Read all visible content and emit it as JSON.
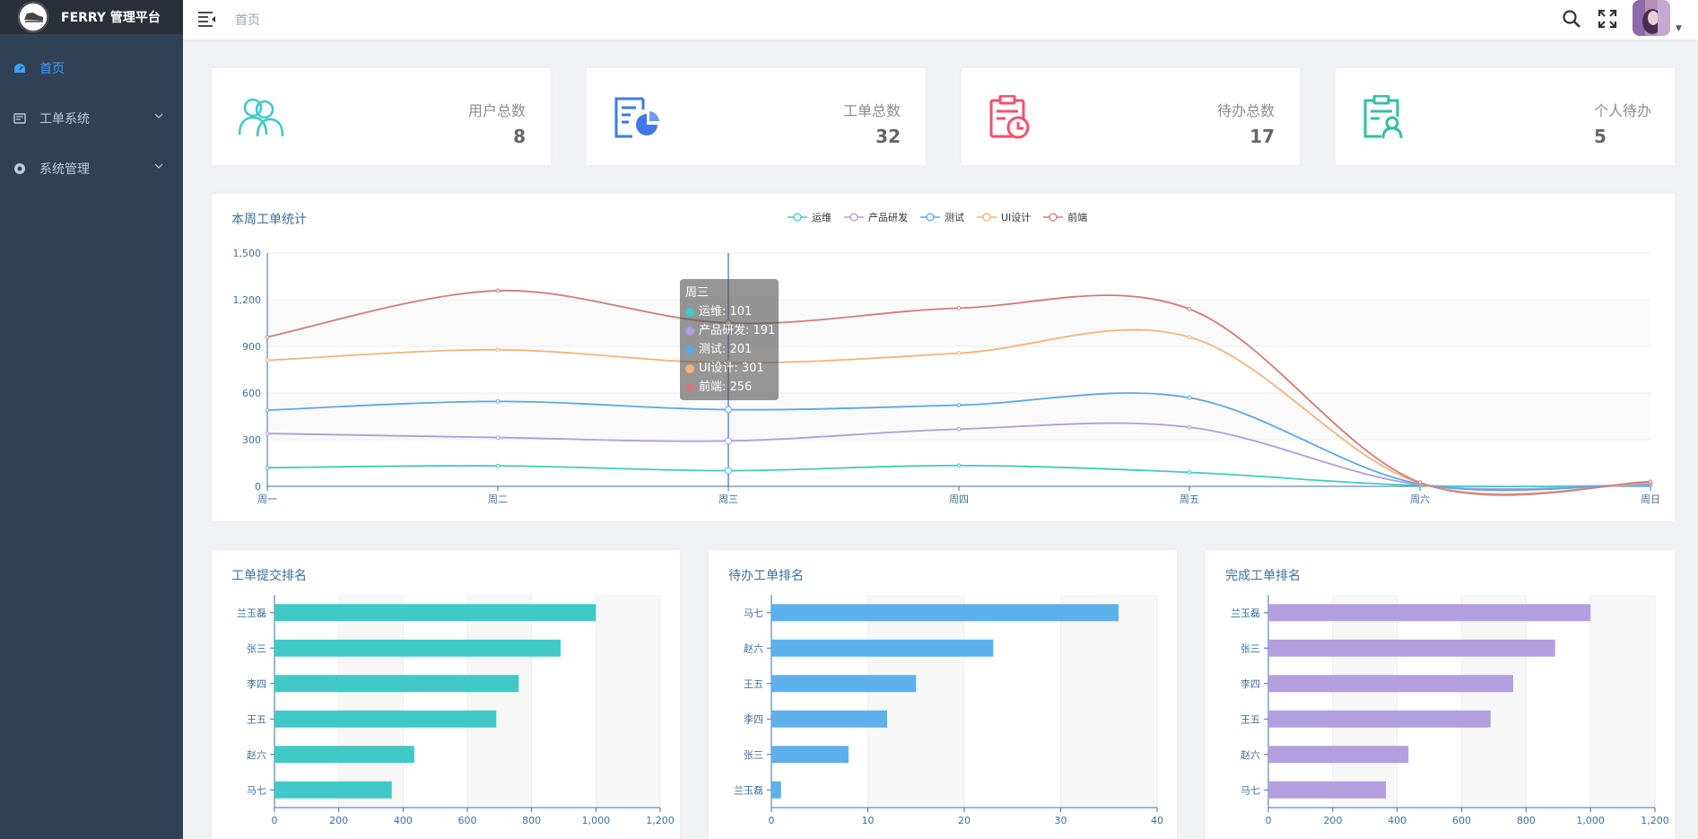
{
  "app": {
    "title": "FERRY 管理平台"
  },
  "sidebar": {
    "items": [
      {
        "label": "首页",
        "icon": "dashboard-icon"
      },
      {
        "label": "工单系统",
        "icon": "ticket-icon"
      },
      {
        "label": "系统管理",
        "icon": "settings-icon"
      }
    ]
  },
  "navbar": {
    "breadcrumb": "首页"
  },
  "stats": [
    {
      "label": "用户总数",
      "value": "8",
      "icon": "users-icon",
      "color": "#40c9c6"
    },
    {
      "label": "工单总数",
      "value": "32",
      "icon": "ticket-chart-icon",
      "color": "#3f79e8"
    },
    {
      "label": "待办总数",
      "value": "17",
      "icon": "clipboard-clock-icon",
      "color": "#f4516c"
    },
    {
      "label": "个人待办",
      "value": "5",
      "icon": "clipboard-user-icon",
      "color": "#34bfa3"
    }
  ],
  "line_chart": {
    "title": "本周工单统计",
    "tooltip": {
      "title": "周三",
      "rows": [
        "运维: 101",
        "产品研发: 191",
        "测试: 201",
        "UI设计: 301",
        "前端: 256"
      ]
    }
  },
  "bar_titles": [
    "工单提交排名",
    "待办工单排名",
    "完成工单排名"
  ],
  "chart_data": [
    {
      "type": "line",
      "title": "本周工单统计",
      "categories": [
        "周一",
        "周二",
        "周三",
        "周四",
        "周五",
        "周六",
        "周日"
      ],
      "ylim": [
        0,
        1500
      ],
      "yticks": [
        "0",
        "300",
        "600",
        "900",
        "1,200",
        "1,500"
      ],
      "stacked": true,
      "smooth": true,
      "legend": "top-center",
      "series": [
        {
          "name": "运维",
          "color": "#40c9c6",
          "values": [
            120,
            132,
            101,
            134,
            90,
            5,
            6
          ]
        },
        {
          "name": "产品研发",
          "color": "#b09ddb",
          "values": [
            220,
            182,
            191,
            234,
            290,
            5,
            6
          ]
        },
        {
          "name": "测试",
          "color": "#5ba8e6",
          "values": [
            150,
            232,
            201,
            154,
            190,
            5,
            6
          ]
        },
        {
          "name": "UI设计",
          "color": "#f4b37a",
          "values": [
            320,
            332,
            301,
            334,
            390,
            5,
            6
          ]
        },
        {
          "name": "前端",
          "color": "#d37a7a",
          "values": [
            150,
            380,
            256,
            290,
            180,
            5,
            6
          ]
        }
      ]
    },
    {
      "type": "bar",
      "orientation": "horizontal",
      "title": "工单提交排名",
      "categories": [
        "兰玉磊",
        "张三",
        "李四",
        "王五",
        "赵六",
        "马七"
      ],
      "values": [
        1000,
        890,
        760,
        690,
        435,
        365
      ],
      "xlim": [
        0,
        1200
      ],
      "xticks": [
        "0",
        "200",
        "400",
        "600",
        "800",
        "1,000",
        "1,200"
      ],
      "color": "#40c9c6"
    },
    {
      "type": "bar",
      "orientation": "horizontal",
      "title": "待办工单排名",
      "categories": [
        "马七",
        "赵六",
        "王五",
        "李四",
        "张三",
        "兰玉磊"
      ],
      "values": [
        36,
        23,
        15,
        12,
        8,
        1
      ],
      "xlim": [
        0,
        40
      ],
      "xticks": [
        "0",
        "10",
        "20",
        "30",
        "40"
      ],
      "color": "#5cb0ec"
    },
    {
      "type": "bar",
      "orientation": "horizontal",
      "title": "完成工单排名",
      "categories": [
        "兰玉磊",
        "张三",
        "李四",
        "王五",
        "赵六",
        "马七"
      ],
      "values": [
        1000,
        890,
        760,
        690,
        435,
        365
      ],
      "xlim": [
        0,
        1200
      ],
      "xticks": [
        "0",
        "200",
        "400",
        "600",
        "800",
        "1,000",
        "1,200"
      ],
      "color": "#b39ee0"
    }
  ]
}
